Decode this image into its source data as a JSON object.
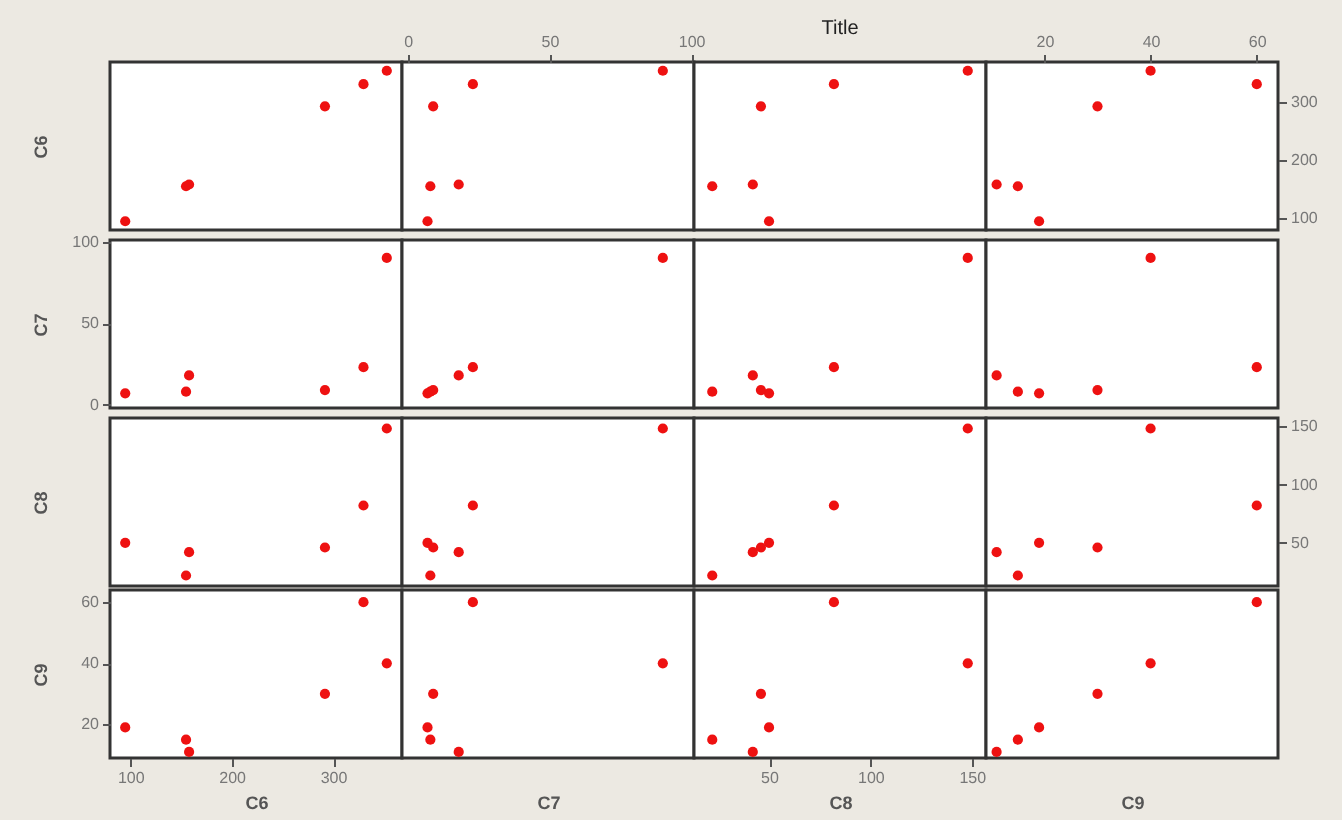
{
  "chart_data": [
    {
      "type": "scatter",
      "x": [
        95,
        155,
        158,
        292,
        330,
        353
      ],
      "xlim": [
        80,
        368
      ],
      "ylim": [
        80,
        368
      ],
      "ylabel": "C6",
      "tick_labels": false,
      "series": [
        {
          "color": "#ee1111",
          "values": [
            95,
            155,
            158,
            292,
            330,
            353
          ]
        }
      ]
    },
    {
      "type": "scatter",
      "x": [
        7,
        8,
        18,
        9,
        23,
        90
      ],
      "xlim": [
        -2,
        101
      ],
      "xticks": [
        0,
        50,
        100
      ],
      "ylim": [
        80,
        368
      ],
      "tick_labels": "x",
      "series": [
        {
          "color": "#ee1111",
          "values": [
            95,
            155,
            158,
            292,
            330,
            353
          ]
        }
      ]
    },
    {
      "type": "scatter",
      "title": "Title",
      "x": [
        50,
        22,
        42,
        46,
        82,
        148
      ],
      "xlim": [
        13,
        157
      ],
      "ylim": [
        80,
        368
      ],
      "tick_labels": false,
      "series": [
        {
          "color": "#ee1111",
          "values": [
            95,
            155,
            158,
            292,
            330,
            353
          ]
        }
      ]
    },
    {
      "type": "scatter",
      "x": [
        19,
        15,
        11,
        30,
        60,
        40
      ],
      "xlim": [
        9,
        64
      ],
      "xticks": [
        20,
        40,
        60
      ],
      "ylim": [
        80,
        368
      ],
      "yticks": [
        100,
        200,
        300
      ],
      "series": [
        {
          "color": "#ee1111",
          "values": [
            95,
            155,
            158,
            292,
            330,
            353
          ]
        }
      ]
    },
    {
      "type": "scatter",
      "x": [
        95,
        155,
        158,
        292,
        330,
        353
      ],
      "xlim": [
        80,
        368
      ],
      "ylim": [
        -2,
        101
      ],
      "yticks": [
        0,
        50,
        100
      ],
      "ylabel": "C7",
      "tick_labels": "y",
      "series": [
        {
          "color": "#ee1111",
          "values": [
            7,
            8,
            18,
            9,
            23,
            90
          ]
        }
      ]
    },
    {
      "type": "scatter",
      "x": [
        7,
        8,
        18,
        9,
        23,
        90
      ],
      "xlim": [
        -2,
        101
      ],
      "ylim": [
        -2,
        101
      ],
      "tick_labels": false,
      "series": [
        {
          "color": "#ee1111",
          "values": [
            7,
            8,
            18,
            9,
            23,
            90
          ]
        }
      ]
    },
    {
      "type": "scatter",
      "x": [
        50,
        22,
        42,
        46,
        82,
        148
      ],
      "xlim": [
        13,
        157
      ],
      "ylim": [
        -2,
        101
      ],
      "tick_labels": false,
      "series": [
        {
          "color": "#ee1111",
          "values": [
            7,
            8,
            18,
            9,
            23,
            90
          ]
        }
      ]
    },
    {
      "type": "scatter",
      "x": [
        19,
        15,
        11,
        30,
        60,
        40
      ],
      "xlim": [
        9,
        64
      ],
      "ylim": [
        -2,
        101
      ],
      "tick_labels": false,
      "series": [
        {
          "color": "#ee1111",
          "values": [
            7,
            8,
            18,
            9,
            23,
            90
          ]
        }
      ]
    },
    {
      "type": "scatter",
      "x": [
        95,
        155,
        158,
        292,
        330,
        353
      ],
      "xlim": [
        80,
        368
      ],
      "ylim": [
        13,
        157
      ],
      "ylabel": "C8",
      "tick_labels": false,
      "series": [
        {
          "color": "#ee1111",
          "values": [
            50,
            22,
            42,
            46,
            82,
            148
          ]
        }
      ]
    },
    {
      "type": "scatter",
      "x": [
        7,
        8,
        18,
        9,
        23,
        90
      ],
      "xlim": [
        -2,
        101
      ],
      "ylim": [
        13,
        157
      ],
      "tick_labels": false,
      "series": [
        {
          "color": "#ee1111",
          "values": [
            50,
            22,
            42,
            46,
            82,
            148
          ]
        }
      ]
    },
    {
      "type": "scatter",
      "x": [
        50,
        22,
        42,
        46,
        82,
        148
      ],
      "xlim": [
        13,
        157
      ],
      "ylim": [
        13,
        157
      ],
      "tick_labels": false,
      "series": [
        {
          "color": "#ee1111",
          "values": [
            50,
            22,
            42,
            46,
            82,
            148
          ]
        }
      ]
    },
    {
      "type": "scatter",
      "x": [
        19,
        15,
        11,
        30,
        60,
        40
      ],
      "xlim": [
        9,
        64
      ],
      "ylim": [
        13,
        157
      ],
      "yticks": [
        50,
        100,
        150
      ],
      "tick_labels": "y",
      "series": [
        {
          "color": "#ee1111",
          "values": [
            50,
            22,
            42,
            46,
            82,
            148
          ]
        }
      ]
    },
    {
      "type": "scatter",
      "x": [
        95,
        155,
        158,
        292,
        330,
        353
      ],
      "xlim": [
        80,
        368
      ],
      "xticks": [
        100,
        200,
        300
      ],
      "xlabel": "C6",
      "ylim": [
        9,
        64
      ],
      "yticks": [
        20,
        40,
        60
      ],
      "ylabel": "C9",
      "series": [
        {
          "color": "#ee1111",
          "values": [
            19,
            15,
            11,
            30,
            60,
            40
          ]
        }
      ]
    },
    {
      "type": "scatter",
      "x": [
        7,
        8,
        18,
        9,
        23,
        90
      ],
      "xlim": [
        -2,
        101
      ],
      "xlabel": "C7",
      "ylim": [
        9,
        64
      ],
      "tick_labels": false,
      "series": [
        {
          "color": "#ee1111",
          "values": [
            19,
            15,
            11,
            30,
            60,
            40
          ]
        }
      ]
    },
    {
      "type": "scatter",
      "x": [
        50,
        22,
        42,
        46,
        82,
        148
      ],
      "xlim": [
        13,
        157
      ],
      "xticks": [
        50,
        100,
        150
      ],
      "xlabel": "C8",
      "ylim": [
        9,
        64
      ],
      "tick_labels": "x",
      "series": [
        {
          "color": "#ee1111",
          "values": [
            19,
            15,
            11,
            30,
            60,
            40
          ]
        }
      ]
    },
    {
      "type": "scatter",
      "x": [
        19,
        15,
        11,
        30,
        60,
        40
      ],
      "xlim": [
        9,
        64
      ],
      "xlabel": "C9",
      "ylim": [
        9,
        64
      ],
      "tick_labels": false,
      "series": [
        {
          "color": "#ee1111",
          "values": [
            19,
            15,
            11,
            30,
            60,
            40
          ]
        }
      ]
    }
  ]
}
